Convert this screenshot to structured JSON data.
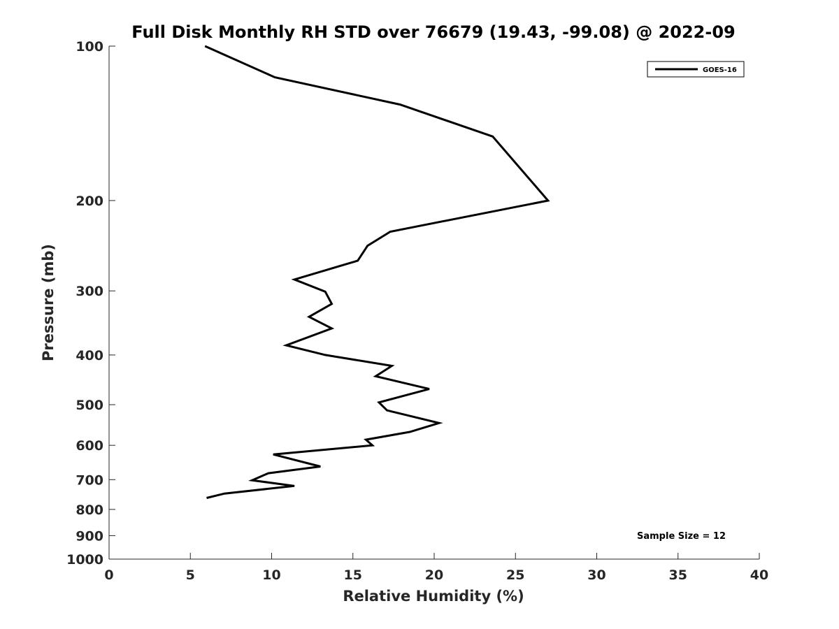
{
  "chart_data": {
    "type": "line",
    "title": "Full Disk Monthly RH STD over 76679 (19.43, -99.08) @ 2022-09",
    "xlabel": "Relative Humidity (%)",
    "ylabel": "Pressure (mb)",
    "xlim": [
      0,
      40
    ],
    "ylim": [
      100,
      1000
    ],
    "y_scale": "log",
    "y_reversed": true,
    "x_ticks": [
      0,
      5,
      10,
      15,
      20,
      25,
      30,
      35,
      40
    ],
    "y_ticks": [
      100,
      200,
      300,
      400,
      500,
      600,
      700,
      800,
      900,
      1000
    ],
    "grid": false,
    "legend_position": "top-right",
    "series": [
      {
        "name": "GOES-16",
        "color": "#000000",
        "x": [
          5.9,
          10.2,
          17.9,
          23.6,
          27.0,
          17.3,
          15.9,
          15.3,
          11.4,
          13.3,
          13.7,
          12.3,
          13.7,
          10.9,
          13.3,
          17.4,
          16.4,
          19.7,
          16.6,
          17.1,
          20.3,
          18.5,
          15.8,
          16.2,
          10.1,
          13.0,
          9.8,
          8.8,
          11.4,
          7.1,
          6.0
        ],
        "y": [
          100,
          115,
          130,
          150,
          200,
          230,
          245,
          262,
          285,
          301,
          318,
          337,
          355,
          383,
          400,
          420,
          440,
          466,
          495,
          513,
          543,
          565,
          585,
          600,
          625,
          660,
          680,
          702,
          720,
          745,
          760
        ]
      }
    ],
    "annotations": [
      "Sample Size = 12"
    ]
  }
}
